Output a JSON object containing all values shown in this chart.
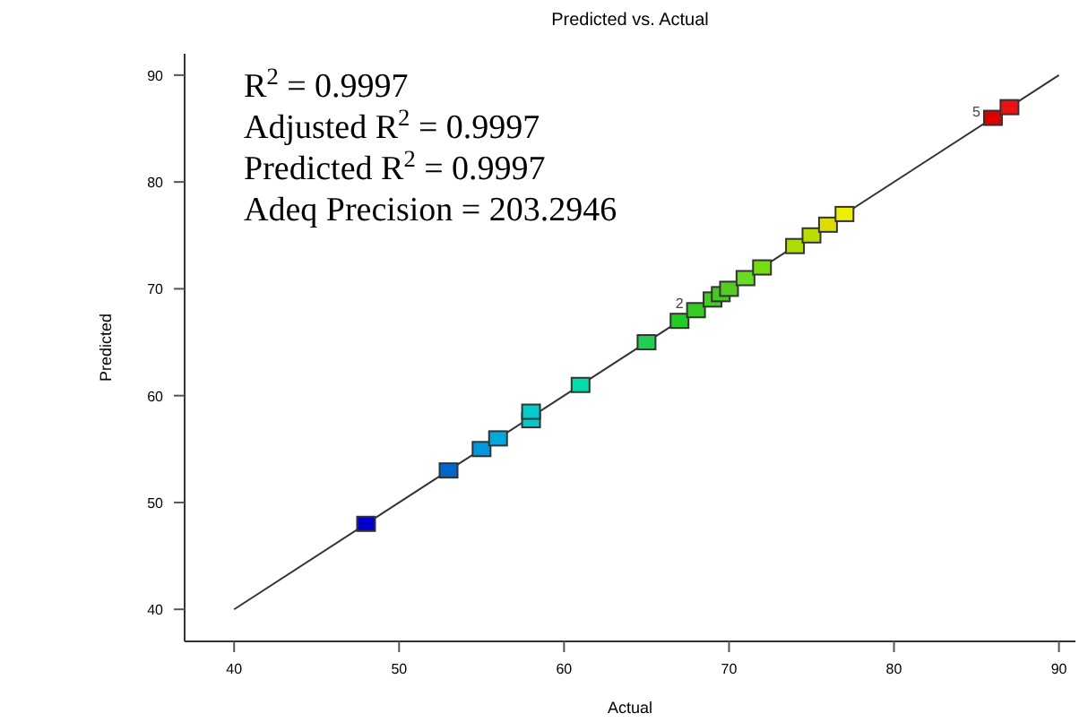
{
  "chart_data": {
    "type": "scatter",
    "title": "Predicted vs. Actual",
    "xlabel": "Actual",
    "ylabel": "Predicted",
    "xlim": [
      37,
      91
    ],
    "ylim": [
      37,
      92
    ],
    "xticks": [
      40,
      50,
      60,
      70,
      80,
      90
    ],
    "yticks": [
      40,
      50,
      60,
      70,
      80,
      90
    ],
    "grid": false,
    "series": [
      {
        "marker": "square",
        "x": [
          48,
          53,
          55,
          56,
          58,
          58,
          61,
          65,
          67,
          68,
          69,
          69.5,
          70,
          71,
          72,
          74,
          75,
          76,
          77,
          86,
          87
        ],
        "values": [
          48,
          53,
          55,
          56,
          57.7,
          58.5,
          61,
          65,
          67,
          68,
          69,
          69.5,
          70,
          71,
          72,
          74,
          75,
          76,
          77,
          86,
          87
        ],
        "colors": [
          "#0000cc",
          "#0066cc",
          "#0099dd",
          "#00aadd",
          "#00cccc",
          "#00cccc",
          "#00ddaa",
          "#22cc55",
          "#22cc22",
          "#33cc22",
          "#44cc22",
          "#44cc22",
          "#55cc22",
          "#66dd22",
          "#77dd11",
          "#aadd00",
          "#bbdd00",
          "#dddd00",
          "#eeee00",
          "#dd0000",
          "#ee1111"
        ]
      },
      {
        "type": "line",
        "marker": "none",
        "x": [
          40,
          90
        ],
        "values": [
          40,
          90
        ],
        "color": "#333333"
      }
    ],
    "annotations": [
      "R$^{2}$ = 0.9997",
      "Adjusted R$^{2}$ = 0.9997",
      "Predicted R$^{2}$ = 0.9997",
      "Adeq Precision = 203.2946",
      {
        "text": "2",
        "x": 68,
        "y": 68
      },
      {
        "text": "5",
        "x": 86,
        "y": 86
      }
    ]
  }
}
